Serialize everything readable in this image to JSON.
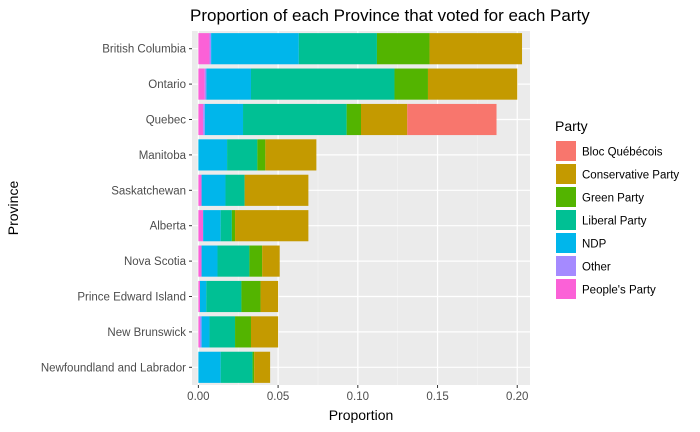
{
  "chart_data": {
    "type": "bar",
    "orientation": "horizontal",
    "stacked": true,
    "title": "Proportion of each Province that voted for each Party",
    "xlabel": "Proportion",
    "ylabel": "Province",
    "xlim": [
      -0.004,
      0.208
    ],
    "xticks": [
      0.0,
      0.05,
      0.1,
      0.15,
      0.2
    ],
    "xtick_labels": [
      "0.00",
      "0.05",
      "0.10",
      "0.15",
      "0.20"
    ],
    "grid": true,
    "legend_position": "right",
    "legend_title": "Party",
    "categories": [
      "British Columbia",
      "Ontario",
      "Quebec",
      "Manitoba",
      "Saskatchewan",
      "Alberta",
      "Nova Scotia",
      "Prince Edward Island",
      "New Brunswick",
      "Newfoundland and Labrador"
    ],
    "stack_order": [
      "People's Party",
      "Other",
      "NDP",
      "Liberal Party",
      "Green Party",
      "Conservative Party",
      "Bloc Québécois"
    ],
    "series": [
      {
        "name": "Bloc Québécois",
        "color": "#F8766D",
        "values": [
          0,
          0,
          0.056,
          0,
          0,
          0,
          0,
          0,
          0,
          0
        ]
      },
      {
        "name": "Conservative Party",
        "color": "#C49A00",
        "values": [
          0.058,
          0.056,
          0.029,
          0.032,
          0.04,
          0.046,
          0.011,
          0.011,
          0.017,
          0.01
        ]
      },
      {
        "name": "Green Party",
        "color": "#53B400",
        "values": [
          0.033,
          0.021,
          0.009,
          0.005,
          0,
          0.002,
          0.008,
          0.012,
          0.01,
          0.001
        ]
      },
      {
        "name": "Liberal Party",
        "color": "#00C094",
        "values": [
          0.049,
          0.09,
          0.065,
          0.019,
          0.012,
          0.007,
          0.02,
          0.022,
          0.016,
          0.02
        ]
      },
      {
        "name": "NDP",
        "color": "#00B6EB",
        "values": [
          0.055,
          0.028,
          0.024,
          0.018,
          0.015,
          0.011,
          0.01,
          0.004,
          0.005,
          0.014
        ]
      },
      {
        "name": "Other",
        "color": "#A58AFF",
        "values": [
          0.001,
          0.001,
          0.001,
          0,
          0,
          0,
          0,
          0,
          0.001,
          0
        ]
      },
      {
        "name": "People's Party",
        "color": "#FB61D7",
        "values": [
          0.007,
          0.004,
          0.003,
          0,
          0.002,
          0.003,
          0.002,
          0.001,
          0.001,
          0
        ]
      }
    ],
    "legend_order": [
      "Bloc Québécois",
      "Conservative Party",
      "Green Party",
      "Liberal Party",
      "NDP",
      "Other",
      "People's Party"
    ]
  }
}
